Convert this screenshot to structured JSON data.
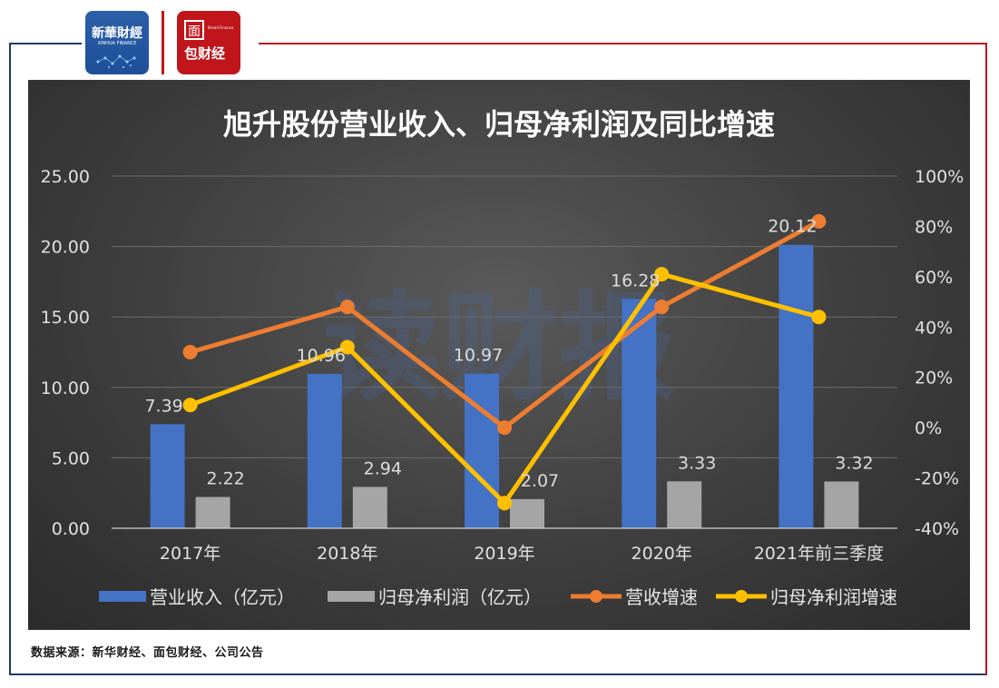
{
  "header": {
    "logo_left_text": "新華財經",
    "logo_left_subtext": "XINHUA FINANCE",
    "logo_right_top": "面",
    "logo_right_bottom": "包财经",
    "logo_right_small": "Bread Finance"
  },
  "watermark": "读财报",
  "source_note": "数据来源：新华财经、面包财经、公司公告",
  "colors": {
    "revenue_bar": "#4472C4",
    "profit_bar": "#A5A5A5",
    "revenue_growth": "#ED7D31",
    "profit_growth": "#FFC000",
    "frame_red": "#C0161B",
    "frame_blue": "#1F3A6E"
  },
  "chart_data": {
    "type": "bar",
    "title": "旭升股份营业收入、归母净利润及同比增速",
    "categories": [
      "2017年",
      "2018年",
      "2019年",
      "2020年",
      "2021年前三季度"
    ],
    "y_left": {
      "ticks": [
        "25.00",
        "20.00",
        "15.00",
        "10.00",
        "5.00",
        "0.00"
      ],
      "ylim": [
        0,
        25
      ]
    },
    "y_right": {
      "ticks": [
        "100%",
        "80%",
        "60%",
        "40%",
        "20%",
        "0%",
        "-20%",
        "-40%"
      ],
      "ylim": [
        -40,
        100
      ]
    },
    "grid": true,
    "legend_position": "bottom",
    "series": [
      {
        "name": "营业收入（亿元）",
        "kind": "bar",
        "axis": "left",
        "color": "#4472C4",
        "values": [
          7.39,
          10.96,
          10.97,
          16.28,
          20.12
        ],
        "labels": [
          "7.39",
          "10.96",
          "10.97",
          "16.28",
          "20.12"
        ]
      },
      {
        "name": "归母净利润（亿元）",
        "kind": "bar",
        "axis": "left",
        "color": "#A5A5A5",
        "values": [
          2.22,
          2.94,
          2.07,
          3.33,
          3.32
        ],
        "labels": [
          "2.22",
          "2.94",
          "2.07",
          "3.33",
          "3.32"
        ]
      },
      {
        "name": "营收增速",
        "kind": "line",
        "axis": "right",
        "color": "#ED7D31",
        "values": [
          30,
          48,
          0,
          48,
          82
        ]
      },
      {
        "name": "归母净利润增速",
        "kind": "line",
        "axis": "right",
        "color": "#FFC000",
        "values": [
          9,
          32,
          -30,
          61,
          44
        ]
      }
    ]
  }
}
